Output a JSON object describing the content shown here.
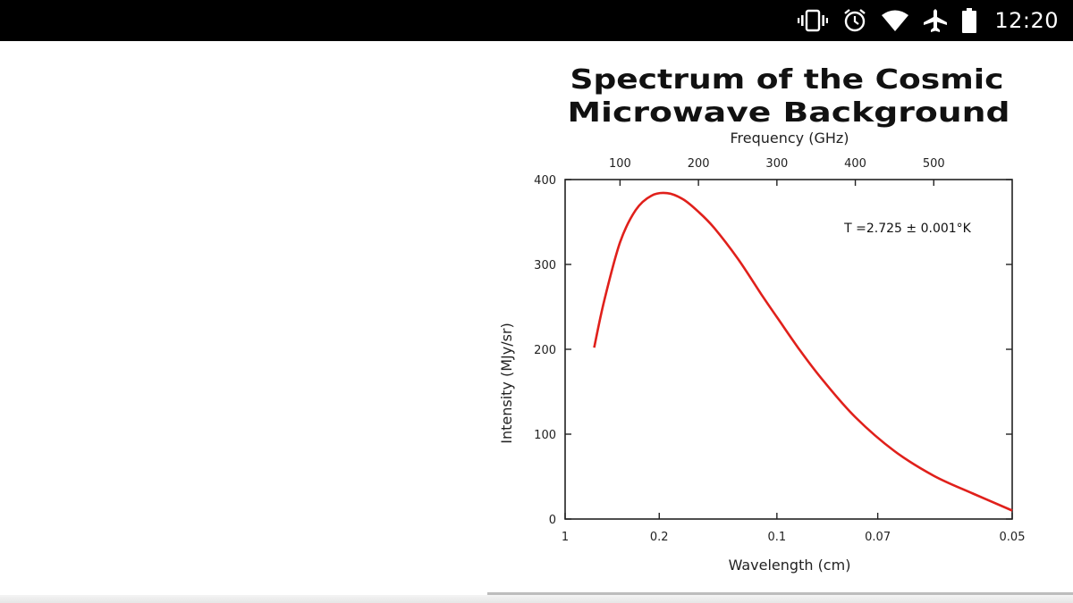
{
  "status_bar": {
    "time": "12:20",
    "icons": [
      "vibrate-icon",
      "alarm-icon",
      "wifi-icon",
      "airplane-mode-icon",
      "battery-icon"
    ]
  },
  "chart_data": {
    "type": "line",
    "title_lines": [
      "Spectrum of the Cosmic",
      "Microwave Background"
    ],
    "xlabel": "Wavelength (cm)",
    "ylabel": "Intensity (MJy/sr)",
    "top_axis_label": "Frequency (GHz)",
    "x_ticks": [
      "1",
      "0.2",
      "0.1",
      "0.07",
      "0.05"
    ],
    "x_tick_values": [
      1,
      0.2,
      0.1,
      0.07,
      0.05
    ],
    "x_range_frequency_ghz": [
      30,
      600
    ],
    "top_ticks": [
      100,
      200,
      300,
      400,
      500
    ],
    "y_ticks": [
      0,
      100,
      200,
      300,
      400
    ],
    "ylim": [
      0,
      400
    ],
    "annotation": "T =2.725 ± 0.001°K",
    "series": [
      {
        "color": "#e0201b",
        "x_frequency_ghz": [
          67,
          80,
          100,
          120,
          140,
          160,
          180,
          200,
          220,
          250,
          280,
          300,
          330,
          360,
          400,
          450,
          500,
          550,
          600
        ],
        "y": [
          202,
          258,
          326,
          364,
          381,
          384,
          377,
          362,
          343,
          307,
          265,
          238,
          198,
          162,
          120,
          80,
          51,
          30,
          10
        ]
      }
    ]
  }
}
